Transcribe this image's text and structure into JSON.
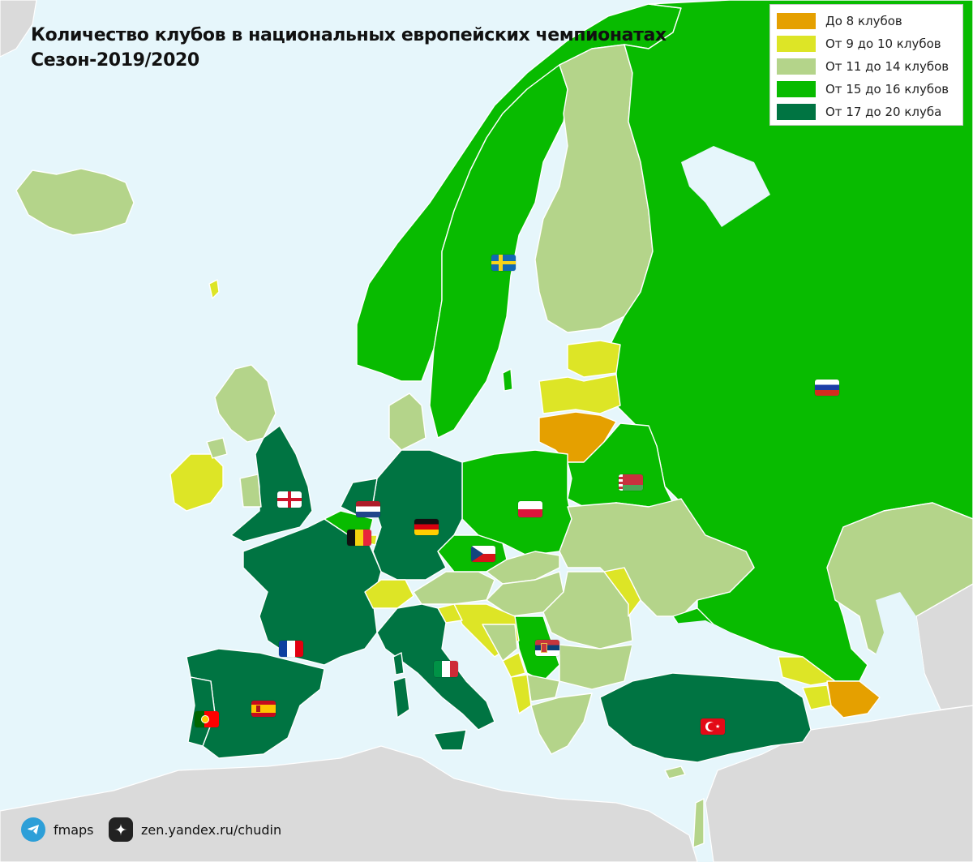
{
  "title": {
    "line1": "Количество клубов в национальных европейских чемпионатах",
    "line2": "Сезон-2019/2020"
  },
  "legend": [
    {
      "label": "До 8 клубов",
      "color": "#e5a000"
    },
    {
      "label": "От 9 до 10 клубов",
      "color": "#dde526"
    },
    {
      "label": "От 11 до 14 клубов",
      "color": "#b4d48a"
    },
    {
      "label": "От 15 до 16 клубов",
      "color": "#08bb00"
    },
    {
      "label": "От 17 до 20 клуба",
      "color": "#007442"
    }
  ],
  "footer": {
    "telegram_label": "fmaps",
    "zen_label": "zen.yandex.ru/chudin"
  },
  "colors": {
    "sea": "#e6f6fb",
    "non_europe_land": "#dadada"
  },
  "flags": [
    "sweden-flag",
    "russia-flag",
    "england-flag",
    "netherlands-flag",
    "belgium-flag",
    "germany-flag",
    "poland-flag",
    "belarus-flag",
    "czech-flag",
    "france-flag",
    "italy-flag",
    "serbia-flag",
    "spain-flag",
    "portugal-flag",
    "turkey-flag"
  ]
}
